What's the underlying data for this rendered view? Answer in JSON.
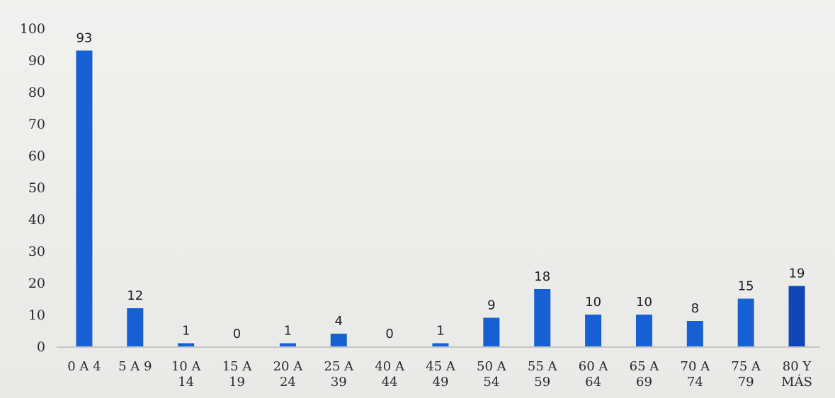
{
  "chart_data": {
    "type": "bar",
    "title": "",
    "xlabel": "",
    "ylabel": "",
    "categories": [
      [
        "0 A 4"
      ],
      [
        "5 A 9"
      ],
      [
        "10 A",
        "14"
      ],
      [
        "15 A",
        "19"
      ],
      [
        "20 A",
        "24"
      ],
      [
        "25 A",
        "39"
      ],
      [
        "40 A",
        "44"
      ],
      [
        "45 A",
        "49"
      ],
      [
        "50 A",
        "54"
      ],
      [
        "55 A",
        "59"
      ],
      [
        "60 A",
        "64"
      ],
      [
        "65 A",
        "69"
      ],
      [
        "70 A",
        "74"
      ],
      [
        "75 A",
        "79"
      ],
      [
        "80 Y",
        "MÁS"
      ]
    ],
    "values": [
      93,
      12,
      1,
      0,
      1,
      4,
      0,
      1,
      9,
      18,
      10,
      10,
      8,
      15,
      19
    ],
    "ylim": [
      0,
      100
    ],
    "yticks": [
      0,
      10,
      20,
      30,
      40,
      50,
      60,
      70,
      80,
      90,
      100
    ],
    "grid": false,
    "legend": "none",
    "bar_color": "#1760d4",
    "last_bar_color": "#1246b8",
    "axis_color": "#b9b9b9"
  }
}
